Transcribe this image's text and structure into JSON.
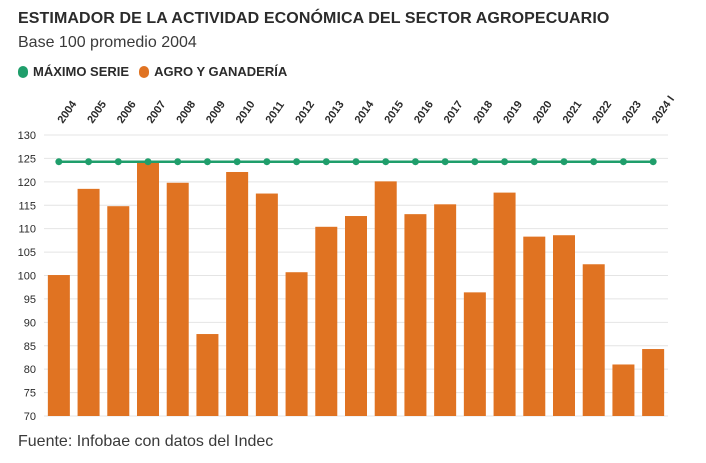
{
  "header": {
    "title": "ESTIMADOR DE LA ACTIVIDAD ECONÓMICA DEL SECTOR AGROPECUARIO",
    "subtitle": "Base 100 promedio 2004"
  },
  "footer": {
    "source": "Fuente: Infobae con datos del Indec"
  },
  "colors": {
    "bar": "#e07322",
    "line": "#1f9e6b",
    "grid": "#e4e4e4",
    "text": "#2b2b2b"
  },
  "chart_data": {
    "type": "bar",
    "categories": [
      "2004",
      "2005",
      "2006",
      "2007",
      "2008",
      "2009",
      "2010",
      "2011",
      "2012",
      "2013",
      "2014",
      "2015",
      "2016",
      "2017",
      "2018",
      "2019",
      "2020",
      "2021",
      "2022",
      "2023",
      "2024 I"
    ],
    "series": [
      {
        "name": "AGRO Y GANADERÍA",
        "type": "bar",
        "color": "#e07322",
        "values": [
          100.1,
          118.5,
          114.8,
          124.3,
          119.8,
          87.5,
          122.1,
          117.5,
          100.7,
          110.4,
          112.7,
          120.1,
          113.1,
          115.2,
          96.4,
          117.7,
          108.3,
          108.6,
          102.4,
          81.0,
          84.3
        ]
      },
      {
        "name": "MÁXIMO SERIE",
        "type": "line",
        "color": "#1f9e6b",
        "values": [
          124.3,
          124.3,
          124.3,
          124.3,
          124.3,
          124.3,
          124.3,
          124.3,
          124.3,
          124.3,
          124.3,
          124.3,
          124.3,
          124.3,
          124.3,
          124.3,
          124.3,
          124.3,
          124.3,
          124.3,
          124.3
        ]
      }
    ],
    "ylim": [
      70,
      130
    ],
    "yticks": [
      70,
      75,
      80,
      85,
      90,
      95,
      100,
      105,
      110,
      115,
      120,
      125,
      130
    ],
    "grid": true,
    "legend": "top-left"
  }
}
